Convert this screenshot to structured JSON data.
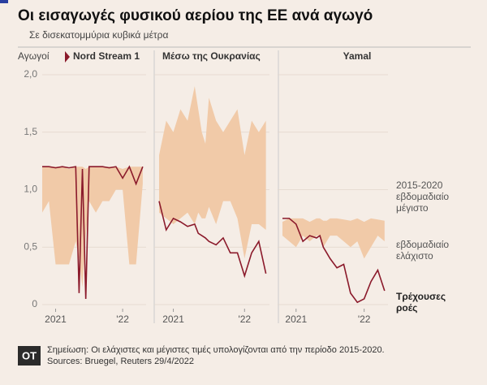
{
  "header": {
    "title": "Οι εισαγωγές φυσικού αερίου της ΕΕ ανά αγωγό",
    "subtitle": "Σε δισεκατομμύρια κυβικά μέτρα",
    "pipelines_label": "Αγωγοί"
  },
  "chart_data": [
    {
      "type": "range-line",
      "title": "Nord Stream 1",
      "color": "#8b1a2b",
      "band_color": "#f1caa8",
      "x": [
        2020.8,
        2020.9,
        2021.0,
        2021.1,
        2021.2,
        2021.3,
        2021.35,
        2021.4,
        2021.45,
        2021.5,
        2021.6,
        2021.7,
        2021.8,
        2021.9,
        2022.0,
        2022.1,
        2022.2,
        2022.3
      ],
      "max": [
        1.2,
        1.2,
        1.2,
        1.2,
        1.18,
        1.2,
        1.2,
        1.2,
        1.18,
        1.2,
        1.2,
        1.2,
        1.2,
        1.2,
        1.18,
        1.2,
        1.2,
        1.2
      ],
      "min": [
        0.8,
        0.9,
        0.35,
        0.35,
        0.35,
        0.55,
        0.4,
        0.15,
        0.6,
        0.9,
        0.8,
        0.9,
        0.9,
        1.0,
        1.0,
        0.35,
        0.35,
        1.05
      ],
      "values": [
        1.2,
        1.2,
        1.19,
        1.2,
        1.19,
        1.2,
        0.1,
        1.18,
        0.05,
        1.2,
        1.2,
        1.2,
        1.19,
        1.2,
        1.1,
        1.2,
        1.05,
        1.2
      ],
      "xlim": [
        2020.8,
        2022.35
      ],
      "ylim": [
        0,
        2.0
      ],
      "xticks": [
        2021,
        {
          "value": 2022,
          "label": "'22"
        }
      ],
      "yticks": [
        0,
        {
          "value": 0.5,
          "label": "0,5"
        },
        {
          "value": 1.0,
          "label": "1,0"
        },
        {
          "value": 1.5,
          "label": "1,5"
        },
        {
          "value": 2.0,
          "label": "2,0"
        }
      ],
      "grid": true
    },
    {
      "type": "range-line",
      "title": "Μέσω της Ουκρανίας",
      "color": "#8b1a2b",
      "band_color": "#f1caa8",
      "x": [
        2020.8,
        2020.9,
        2021.0,
        2021.1,
        2021.2,
        2021.3,
        2021.35,
        2021.4,
        2021.45,
        2021.5,
        2021.6,
        2021.7,
        2021.8,
        2021.9,
        2022.0,
        2022.1,
        2022.2,
        2022.3
      ],
      "max": [
        1.3,
        1.6,
        1.5,
        1.7,
        1.6,
        1.9,
        1.7,
        1.5,
        1.4,
        1.8,
        1.6,
        1.5,
        1.6,
        1.7,
        1.3,
        1.6,
        1.5,
        1.6
      ],
      "min": [
        0.8,
        0.75,
        0.7,
        0.75,
        0.8,
        0.7,
        0.8,
        0.75,
        0.75,
        0.85,
        0.7,
        0.9,
        0.9,
        0.75,
        0.4,
        0.7,
        0.7,
        0.65
      ],
      "values": [
        0.9,
        0.65,
        0.75,
        0.72,
        0.68,
        0.7,
        0.62,
        0.6,
        0.58,
        0.55,
        0.52,
        0.58,
        0.45,
        0.45,
        0.25,
        0.45,
        0.55,
        0.27
      ],
      "xlim": [
        2020.8,
        2022.35
      ],
      "ylim": [
        0,
        2.0
      ],
      "xticks": [
        2021,
        {
          "value": 2022,
          "label": "'22"
        }
      ]
    },
    {
      "type": "range-line",
      "title": "Yamal",
      "color": "#8b1a2b",
      "band_color": "#f1caa8",
      "x": [
        2020.8,
        2020.9,
        2021.0,
        2021.1,
        2021.2,
        2021.3,
        2021.35,
        2021.4,
        2021.45,
        2021.5,
        2021.6,
        2021.7,
        2021.8,
        2021.9,
        2022.0,
        2022.1,
        2022.2,
        2022.3
      ],
      "max": [
        0.72,
        0.75,
        0.75,
        0.75,
        0.72,
        0.75,
        0.75,
        0.73,
        0.73,
        0.75,
        0.75,
        0.74,
        0.73,
        0.75,
        0.72,
        0.75,
        0.74,
        0.73
      ],
      "min": [
        0.6,
        0.55,
        0.5,
        0.6,
        0.55,
        0.6,
        0.6,
        0.5,
        0.55,
        0.6,
        0.6,
        0.55,
        0.5,
        0.55,
        0.4,
        0.5,
        0.6,
        0.55
      ],
      "values": [
        0.75,
        0.75,
        0.7,
        0.55,
        0.6,
        0.58,
        0.6,
        0.5,
        0.45,
        0.4,
        0.32,
        0.35,
        0.1,
        0.02,
        0.05,
        0.2,
        0.3,
        0.12
      ],
      "xlim": [
        2020.8,
        2022.35
      ],
      "ylim": [
        0,
        2.0
      ],
      "xticks": [
        2021,
        {
          "value": 2022,
          "label": "'22"
        }
      ]
    }
  ],
  "annotations": {
    "max": [
      "2015-2020",
      "εβδομαδιαίο",
      "μέγιστο"
    ],
    "min": [
      "εβδομαδιαίο",
      "ελάχιστο"
    ],
    "current": [
      "Τρέχουσες",
      "ροές"
    ]
  },
  "footer": {
    "logo": "OT",
    "note": "Σημείωση: Οι ελάχιστες και μέγιστες τιμές υπολογίζονται από την περίοδο 2015-2020.",
    "sources": "Sources: Bruegel, Reuters 29/4/2022"
  }
}
